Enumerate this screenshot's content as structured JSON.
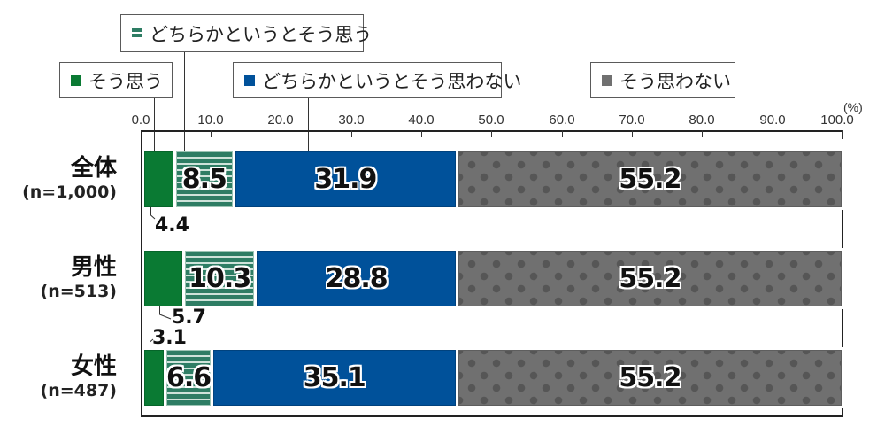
{
  "chart_data": {
    "type": "bar",
    "orientation": "horizontal",
    "stacked": true,
    "unit": "(%)",
    "xlim": [
      0,
      100
    ],
    "x_ticks": [
      "0.0",
      "10.0",
      "20.0",
      "30.0",
      "40.0",
      "50.0",
      "60.0",
      "70.0",
      "80.0",
      "90.0",
      "100.0"
    ],
    "categories": [
      {
        "name": "全体",
        "n": "(n=1,000)"
      },
      {
        "name": "男性",
        "n": "(n=513)"
      },
      {
        "name": "女性",
        "n": "(n=487)"
      }
    ],
    "series": [
      {
        "name": "そう思う",
        "color": "#0A7A33",
        "pattern": "solid",
        "values": [
          4.4,
          5.7,
          3.1
        ],
        "labels": [
          "4.4",
          "5.7",
          "3.1"
        ]
      },
      {
        "name": "どちらかというとそう思う",
        "color": "#2E7D64",
        "pattern": "horizontal-stripes",
        "values": [
          8.5,
          10.3,
          6.6
        ],
        "labels": [
          "8.5",
          "10.3",
          "6.6"
        ]
      },
      {
        "name": "どちらかというとそう思わない",
        "color": "#00519A",
        "pattern": "solid",
        "values": [
          31.9,
          28.8,
          35.1
        ],
        "labels": [
          "31.9",
          "28.8",
          "35.1"
        ]
      },
      {
        "name": "そう思わない",
        "color": "#707070",
        "pattern": "dots",
        "values": [
          55.2,
          55.2,
          55.2
        ],
        "labels": [
          "55.2",
          "55.2",
          "55.2"
        ]
      }
    ],
    "legend_position": "top (callout boxes)",
    "grid": false
  },
  "legend": {
    "items": [
      {
        "label": "そう思う"
      },
      {
        "label": "どちらかというとそう思う"
      },
      {
        "label": "どちらかというとそう思わない"
      },
      {
        "label": "そう思わない"
      }
    ]
  }
}
